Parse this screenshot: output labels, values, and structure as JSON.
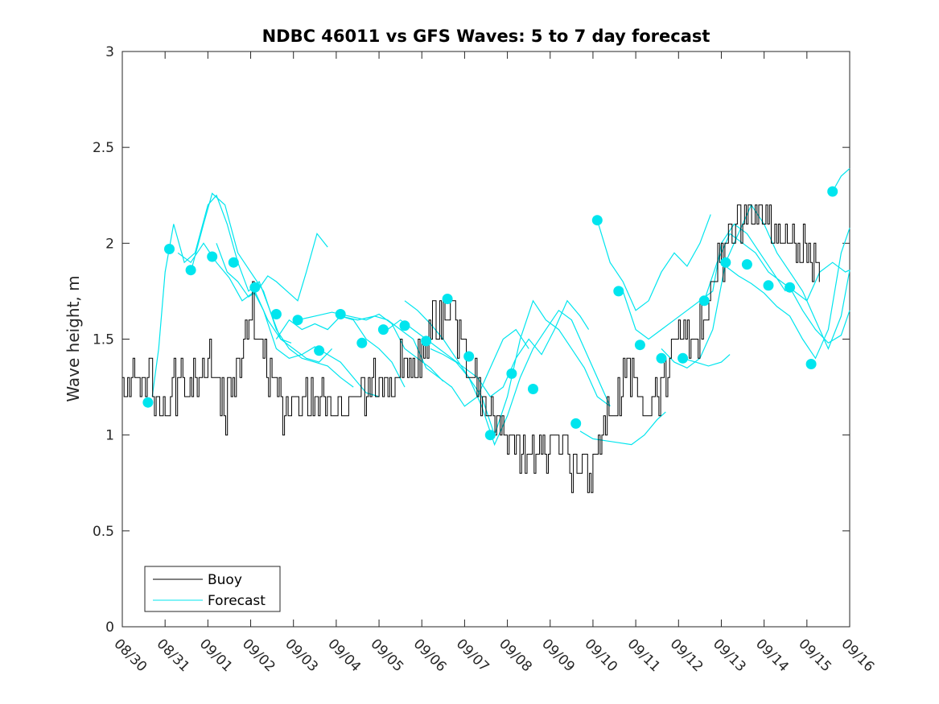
{
  "chart_data": {
    "type": "line",
    "title": "NDBC 46011 vs GFS Waves: 5 to 7 day forecast",
    "xlabel": "",
    "ylabel": "Wave height, m",
    "xlim": [
      0,
      17
    ],
    "ylim": [
      0,
      3
    ],
    "x_tick_labels": [
      "08/30",
      "08/31",
      "09/01",
      "09/02",
      "09/03",
      "09/04",
      "09/05",
      "09/06",
      "09/07",
      "09/08",
      "09/09",
      "09/10",
      "09/11",
      "09/12",
      "09/13",
      "09/14",
      "09/15",
      "09/16"
    ],
    "y_ticks": [
      0,
      0.5,
      1,
      1.5,
      2,
      2.5,
      3
    ],
    "y_tick_labels": [
      "0",
      "0.5",
      "1",
      "1.5",
      "2",
      "2.5",
      "3"
    ],
    "legend": {
      "location": "bottom-left",
      "entries": [
        {
          "label": "Buoy",
          "color": "#000000"
        },
        {
          "label": "Forecast",
          "color": "#00e5ee"
        }
      ]
    },
    "colors": {
      "buoy": "#000000",
      "forecast": "#00e5ee"
    },
    "buoy_keypoints": [
      [
        0.0,
        1.3
      ],
      [
        0.25,
        1.35
      ],
      [
        0.5,
        1.3
      ],
      [
        0.55,
        1.2
      ],
      [
        0.6,
        1.4
      ],
      [
        0.75,
        1.2
      ],
      [
        0.85,
        1.25
      ],
      [
        1.0,
        1.15
      ],
      [
        1.2,
        1.3
      ],
      [
        1.5,
        1.25
      ],
      [
        1.7,
        1.3
      ],
      [
        1.9,
        1.35
      ],
      [
        2.0,
        1.3
      ],
      [
        2.3,
        1.2
      ],
      [
        2.6,
        1.3
      ],
      [
        2.8,
        1.4
      ],
      [
        2.95,
        1.55
      ],
      [
        3.0,
        1.6
      ],
      [
        3.2,
        1.5
      ],
      [
        3.4,
        1.35
      ],
      [
        3.6,
        1.2
      ],
      [
        3.8,
        1.1
      ],
      [
        4.0,
        1.15
      ],
      [
        4.5,
        1.2
      ],
      [
        5.0,
        1.1
      ],
      [
        5.3,
        1.15
      ],
      [
        5.5,
        1.2
      ],
      [
        5.8,
        1.3
      ],
      [
        6.0,
        1.2
      ],
      [
        6.2,
        1.25
      ],
      [
        6.5,
        1.35
      ],
      [
        6.8,
        1.3
      ],
      [
        7.0,
        1.45
      ],
      [
        7.3,
        1.6
      ],
      [
        7.6,
        1.65
      ],
      [
        7.9,
        1.5
      ],
      [
        8.1,
        1.35
      ],
      [
        8.4,
        1.2
      ],
      [
        8.7,
        1.1
      ],
      [
        9.0,
        1.0
      ],
      [
        9.3,
        0.95
      ],
      [
        9.6,
        0.92
      ],
      [
        10.0,
        0.9
      ],
      [
        10.4,
        0.88
      ],
      [
        10.7,
        0.85
      ],
      [
        10.95,
        0.8
      ],
      [
        11.2,
        1.0
      ],
      [
        11.5,
        1.2
      ],
      [
        11.9,
        1.3
      ],
      [
        12.2,
        1.15
      ],
      [
        12.5,
        1.2
      ],
      [
        12.8,
        1.45
      ],
      [
        13.0,
        1.55
      ],
      [
        13.3,
        1.5
      ],
      [
        13.6,
        1.6
      ],
      [
        13.9,
        1.85
      ],
      [
        14.2,
        2.05
      ],
      [
        14.5,
        2.15
      ],
      [
        14.8,
        2.2
      ],
      [
        15.1,
        2.15
      ],
      [
        15.4,
        2.05
      ],
      [
        15.6,
        2.1
      ],
      [
        15.8,
        2.0
      ],
      [
        16.0,
        1.95
      ],
      [
        16.3,
        1.9
      ]
    ],
    "forecast_dots": [
      [
        0.6,
        1.17
      ],
      [
        1.1,
        1.97
      ],
      [
        1.6,
        1.86
      ],
      [
        2.1,
        1.93
      ],
      [
        2.6,
        1.9
      ],
      [
        3.1,
        1.77
      ],
      [
        3.6,
        1.63
      ],
      [
        4.1,
        1.6
      ],
      [
        4.6,
        1.44
      ],
      [
        5.1,
        1.63
      ],
      [
        5.6,
        1.48
      ],
      [
        6.1,
        1.55
      ],
      [
        6.6,
        1.57
      ],
      [
        7.1,
        1.49
      ],
      [
        7.6,
        1.71
      ],
      [
        8.1,
        1.41
      ],
      [
        8.6,
        1.0
      ],
      [
        9.1,
        1.32
      ],
      [
        9.6,
        1.24
      ],
      [
        10.6,
        1.06
      ],
      [
        11.1,
        2.12
      ],
      [
        11.6,
        1.75
      ],
      [
        12.1,
        1.47
      ],
      [
        12.6,
        1.4
      ],
      [
        13.1,
        1.4
      ],
      [
        13.6,
        1.7
      ],
      [
        14.1,
        1.9
      ],
      [
        14.6,
        1.89
      ],
      [
        15.1,
        1.78
      ],
      [
        15.6,
        1.77
      ],
      [
        16.1,
        1.37
      ],
      [
        16.6,
        2.27
      ]
    ],
    "forecast_series": [
      [
        [
          0.7,
          1.2
        ],
        [
          0.85,
          1.45
        ],
        [
          1.0,
          1.85
        ],
        [
          1.2,
          2.1
        ],
        [
          1.45,
          1.9
        ],
        [
          1.7,
          1.95
        ],
        [
          2.0,
          2.2
        ],
        [
          2.2,
          2.25
        ],
        [
          2.45,
          2.1
        ],
        [
          2.7,
          1.9
        ],
        [
          2.95,
          1.75
        ],
        [
          3.2,
          1.8
        ],
        [
          3.45,
          1.65
        ],
        [
          3.7,
          1.5
        ],
        [
          3.95,
          1.48
        ]
      ],
      [
        [
          1.3,
          1.95
        ],
        [
          1.6,
          1.9
        ],
        [
          1.9,
          2.0
        ],
        [
          2.2,
          1.9
        ],
        [
          2.5,
          1.82
        ],
        [
          2.8,
          1.7
        ],
        [
          3.1,
          1.75
        ],
        [
          3.4,
          1.6
        ],
        [
          3.7,
          1.5
        ],
        [
          4.0,
          1.45
        ],
        [
          4.3,
          1.4
        ],
        [
          4.6,
          1.38
        ],
        [
          4.9,
          1.45
        ]
      ],
      [
        [
          1.6,
          1.85
        ],
        [
          1.9,
          2.1
        ],
        [
          2.1,
          2.26
        ],
        [
          2.4,
          2.2
        ],
        [
          2.7,
          1.95
        ],
        [
          3.0,
          1.85
        ],
        [
          3.3,
          1.75
        ],
        [
          3.6,
          1.55
        ],
        [
          3.9,
          1.45
        ],
        [
          4.2,
          1.4
        ],
        [
          4.5,
          1.38
        ],
        [
          4.8,
          1.36
        ],
        [
          5.1,
          1.3
        ],
        [
          5.4,
          1.25
        ]
      ],
      [
        [
          2.2,
          2.0
        ],
        [
          2.45,
          1.85
        ],
        [
          2.7,
          1.8
        ],
        [
          2.95,
          1.72
        ],
        [
          3.15,
          1.75
        ],
        [
          3.4,
          1.83
        ],
        [
          3.6,
          1.8
        ],
        [
          3.85,
          1.75
        ],
        [
          4.1,
          1.7
        ],
        [
          4.3,
          1.85
        ],
        [
          4.55,
          2.05
        ],
        [
          4.8,
          1.98
        ]
      ],
      [
        [
          3.0,
          1.78
        ],
        [
          3.3,
          1.65
        ],
        [
          3.6,
          1.45
        ],
        [
          3.9,
          1.4
        ],
        [
          4.2,
          1.42
        ],
        [
          4.5,
          1.46
        ],
        [
          4.8,
          1.42
        ],
        [
          5.1,
          1.38
        ],
        [
          5.4,
          1.3
        ],
        [
          5.7,
          1.22
        ],
        [
          6.0,
          1.2
        ]
      ],
      [
        [
          3.6,
          1.5
        ],
        [
          3.9,
          1.6
        ],
        [
          4.2,
          1.55
        ],
        [
          4.5,
          1.58
        ],
        [
          4.8,
          1.55
        ],
        [
          5.1,
          1.62
        ],
        [
          5.4,
          1.6
        ],
        [
          5.7,
          1.5
        ],
        [
          6.0,
          1.45
        ],
        [
          6.3,
          1.38
        ],
        [
          6.6,
          1.25
        ]
      ],
      [
        [
          4.1,
          1.6
        ],
        [
          4.5,
          1.62
        ],
        [
          4.9,
          1.64
        ],
        [
          5.3,
          1.62
        ],
        [
          5.7,
          1.6
        ],
        [
          6.0,
          1.63
        ],
        [
          6.3,
          1.58
        ],
        [
          6.6,
          1.45
        ],
        [
          6.9,
          1.4
        ],
        [
          7.2,
          1.35
        ],
        [
          7.5,
          1.28
        ]
      ],
      [
        [
          5.1,
          1.62
        ],
        [
          5.5,
          1.6
        ],
        [
          5.9,
          1.62
        ],
        [
          6.2,
          1.6
        ],
        [
          6.5,
          1.55
        ],
        [
          6.8,
          1.5
        ],
        [
          7.1,
          1.35
        ],
        [
          7.4,
          1.3
        ],
        [
          7.7,
          1.25
        ],
        [
          8.0,
          1.15
        ],
        [
          8.3,
          1.2
        ],
        [
          8.6,
          1.35
        ],
        [
          8.9,
          1.5
        ],
        [
          9.2,
          1.55
        ],
        [
          9.5,
          1.45
        ]
      ],
      [
        [
          6.2,
          1.55
        ],
        [
          6.5,
          1.6
        ],
        [
          6.8,
          1.55
        ],
        [
          7.1,
          1.5
        ],
        [
          7.4,
          1.45
        ],
        [
          7.7,
          1.4
        ],
        [
          8.0,
          1.35
        ],
        [
          8.3,
          1.3
        ],
        [
          8.6,
          1.2
        ],
        [
          8.9,
          1.25
        ],
        [
          9.2,
          1.4
        ],
        [
          9.5,
          1.5
        ],
        [
          9.8,
          1.42
        ],
        [
          10.1,
          1.55
        ],
        [
          10.4,
          1.7
        ],
        [
          10.7,
          1.62
        ],
        [
          10.9,
          1.55
        ]
      ],
      [
        [
          6.6,
          1.7
        ],
        [
          6.9,
          1.65
        ],
        [
          7.2,
          1.58
        ],
        [
          7.5,
          1.5
        ],
        [
          7.8,
          1.4
        ],
        [
          8.1,
          1.3
        ],
        [
          8.4,
          1.15
        ],
        [
          8.7,
          0.95
        ],
        [
          9.0,
          1.1
        ],
        [
          9.3,
          1.3
        ],
        [
          9.6,
          1.45
        ],
        [
          9.9,
          1.55
        ],
        [
          10.2,
          1.65
        ],
        [
          10.5,
          1.6
        ],
        [
          10.8,
          1.45
        ],
        [
          11.1,
          1.3
        ],
        [
          11.4,
          1.15
        ]
      ],
      [
        [
          7.2,
          1.45
        ],
        [
          7.5,
          1.42
        ],
        [
          7.8,
          1.38
        ],
        [
          8.1,
          1.3
        ],
        [
          8.4,
          1.2
        ],
        [
          8.7,
          1.0
        ],
        [
          9.0,
          1.2
        ],
        [
          9.3,
          1.5
        ],
        [
          9.6,
          1.7
        ],
        [
          9.9,
          1.6
        ],
        [
          10.2,
          1.55
        ],
        [
          10.5,
          1.45
        ],
        [
          10.8,
          1.35
        ],
        [
          11.1,
          1.2
        ],
        [
          11.4,
          1.15
        ]
      ],
      [
        [
          10.7,
          1.02
        ],
        [
          11.0,
          0.98
        ],
        [
          11.3,
          0.97
        ],
        [
          11.6,
          0.96
        ],
        [
          11.9,
          0.95
        ],
        [
          12.2,
          1.0
        ],
        [
          12.5,
          1.08
        ],
        [
          12.7,
          1.12
        ]
      ],
      [
        [
          11.1,
          2.12
        ],
        [
          11.4,
          1.9
        ],
        [
          11.7,
          1.8
        ],
        [
          12.0,
          1.65
        ],
        [
          12.3,
          1.7
        ],
        [
          12.6,
          1.85
        ],
        [
          12.9,
          1.95
        ],
        [
          13.2,
          1.88
        ],
        [
          13.5,
          2.0
        ],
        [
          13.75,
          2.15
        ]
      ],
      [
        [
          11.7,
          1.75
        ],
        [
          12.0,
          1.55
        ],
        [
          12.3,
          1.5
        ],
        [
          12.6,
          1.55
        ],
        [
          12.9,
          1.6
        ],
        [
          13.2,
          1.65
        ],
        [
          13.5,
          1.7
        ],
        [
          13.8,
          1.75
        ],
        [
          14.0,
          2.0
        ],
        [
          14.3,
          2.1
        ],
        [
          14.6,
          2.05
        ],
        [
          14.9,
          1.95
        ],
        [
          15.2,
          1.85
        ],
        [
          15.5,
          1.75
        ]
      ],
      [
        [
          12.6,
          1.45
        ],
        [
          12.9,
          1.38
        ],
        [
          13.2,
          1.35
        ],
        [
          13.5,
          1.4
        ],
        [
          13.8,
          1.55
        ],
        [
          14.1,
          1.9
        ],
        [
          14.4,
          2.05
        ],
        [
          14.7,
          2.2
        ],
        [
          15.0,
          2.1
        ],
        [
          15.3,
          1.95
        ],
        [
          15.6,
          1.85
        ],
        [
          15.9,
          1.75
        ],
        [
          16.2,
          1.6
        ],
        [
          16.5,
          1.45
        ],
        [
          16.8,
          1.62
        ],
        [
          17.0,
          1.86
        ]
      ],
      [
        [
          13.1,
          1.4
        ],
        [
          13.4,
          1.38
        ],
        [
          13.7,
          1.36
        ],
        [
          14.0,
          1.38
        ],
        [
          14.2,
          1.42
        ]
      ],
      [
        [
          13.6,
          1.7
        ],
        [
          13.9,
          1.9
        ],
        [
          14.2,
          2.05
        ],
        [
          14.5,
          2.0
        ],
        [
          14.8,
          1.95
        ],
        [
          15.1,
          1.85
        ],
        [
          15.4,
          1.8
        ],
        [
          15.7,
          1.75
        ],
        [
          16.0,
          1.7
        ],
        [
          16.3,
          1.85
        ],
        [
          16.6,
          1.9
        ],
        [
          16.9,
          1.85
        ],
        [
          17.0,
          1.86
        ]
      ],
      [
        [
          14.1,
          1.88
        ],
        [
          14.4,
          1.83
        ],
        [
          14.7,
          1.79
        ],
        [
          15.0,
          1.74
        ],
        [
          15.3,
          1.67
        ],
        [
          15.6,
          1.62
        ],
        [
          15.9,
          1.5
        ],
        [
          16.2,
          1.4
        ],
        [
          16.5,
          1.55
        ],
        [
          16.8,
          1.95
        ],
        [
          17.0,
          2.08
        ]
      ],
      [
        [
          15.6,
          1.77
        ],
        [
          15.9,
          1.65
        ],
        [
          16.2,
          1.55
        ],
        [
          16.5,
          1.48
        ],
        [
          16.8,
          1.52
        ],
        [
          17.0,
          1.65
        ]
      ],
      [
        [
          16.6,
          2.27
        ],
        [
          16.8,
          2.35
        ],
        [
          17.0,
          2.39
        ]
      ]
    ]
  }
}
